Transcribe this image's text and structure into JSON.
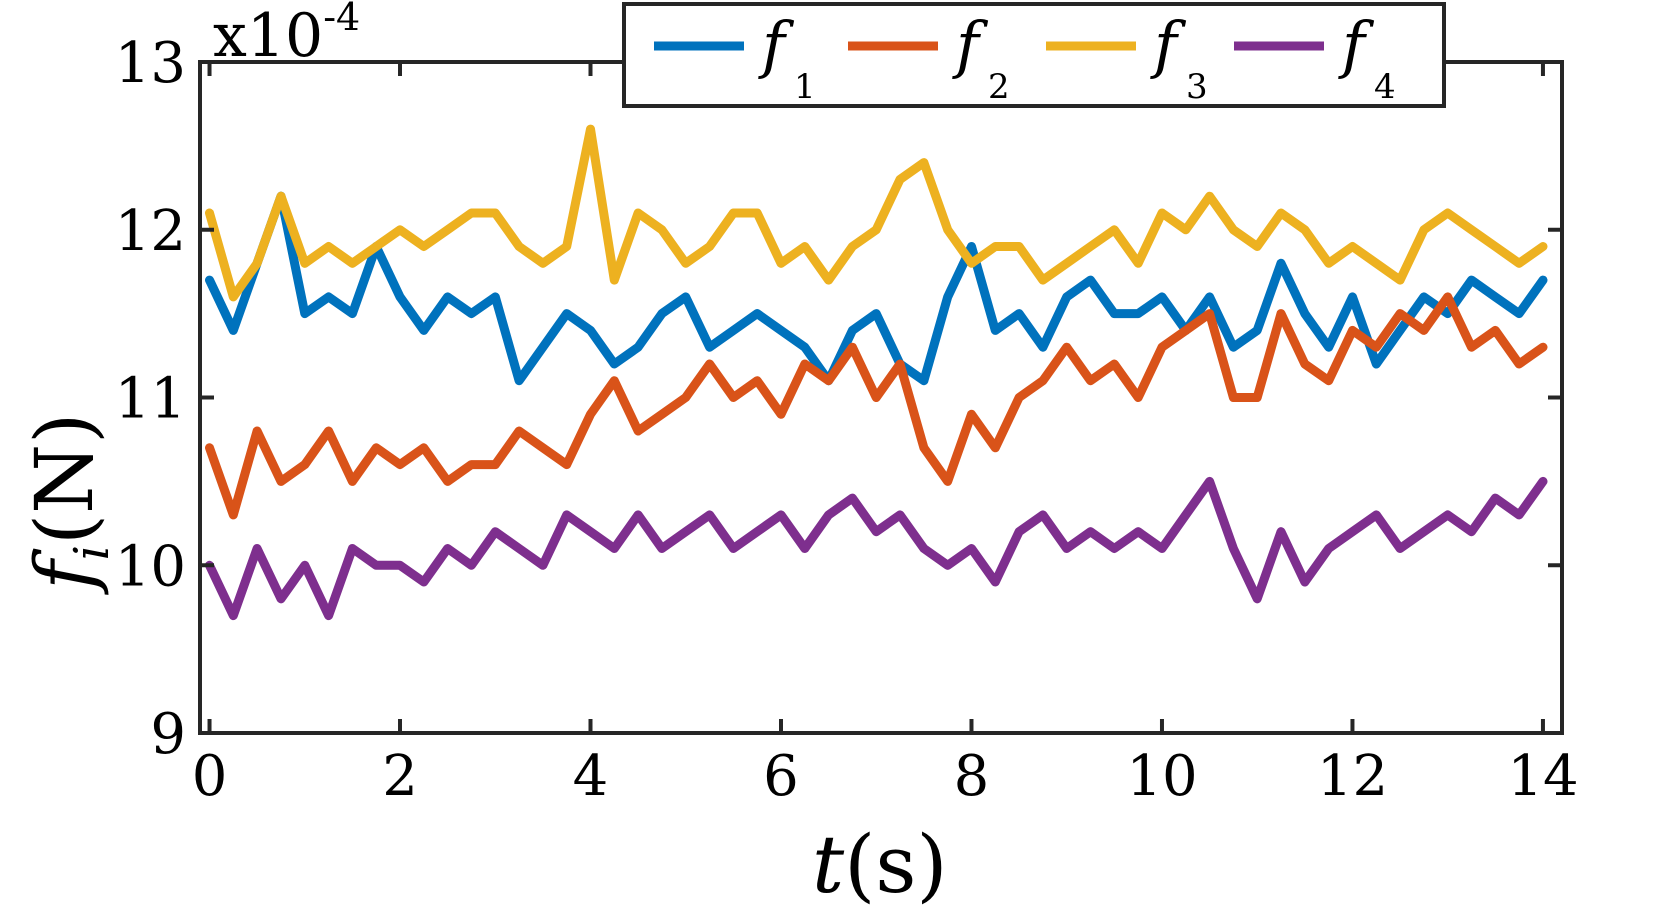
{
  "chart_data": {
    "type": "line",
    "scale_note": {
      "base": "x10",
      "exponent": "-4"
    },
    "xlabel": {
      "var": "t",
      "unit": "(s)"
    },
    "ylabel": {
      "var": "f",
      "sub": "i",
      "unit": "(N)"
    },
    "xlim": [
      -0.1,
      14.2
    ],
    "ylim": [
      9,
      13
    ],
    "xticks": [
      0,
      2,
      4,
      6,
      8,
      10,
      12,
      14
    ],
    "xtick_labels": [
      "0",
      "2",
      "4",
      "6",
      "8",
      "10",
      "12",
      "14"
    ],
    "yticks": [
      9,
      10,
      11,
      12,
      13
    ],
    "ytick_labels": [
      "9",
      "10",
      "11",
      "12",
      "13"
    ],
    "grid": false,
    "legend": {
      "placement": "top-right",
      "orientation": "horizontal"
    },
    "series": [
      {
        "name": "f",
        "sub": "1",
        "color": "#0072BD",
        "x": [
          0,
          0.25,
          0.5,
          0.75,
          1,
          1.25,
          1.5,
          1.75,
          2,
          2.25,
          2.5,
          2.75,
          3,
          3.25,
          3.5,
          3.75,
          4,
          4.25,
          4.5,
          4.75,
          5,
          5.25,
          5.5,
          5.75,
          6,
          6.25,
          6.5,
          6.75,
          7,
          7.25,
          7.5,
          7.75,
          8,
          8.25,
          8.5,
          8.75,
          9,
          9.25,
          9.5,
          9.75,
          10,
          10.25,
          10.5,
          10.75,
          11,
          11.25,
          11.5,
          11.75,
          12,
          12.25,
          12.5,
          12.75,
          13,
          13.25,
          13.5,
          13.75,
          14
        ],
        "y": [
          11.7,
          11.4,
          11.8,
          12.2,
          11.5,
          11.6,
          11.5,
          11.9,
          11.6,
          11.4,
          11.6,
          11.5,
          11.6,
          11.1,
          11.3,
          11.5,
          11.4,
          11.2,
          11.3,
          11.5,
          11.6,
          11.3,
          11.4,
          11.5,
          11.4,
          11.3,
          11.1,
          11.4,
          11.5,
          11.2,
          11.1,
          11.6,
          11.9,
          11.4,
          11.5,
          11.3,
          11.6,
          11.7,
          11.5,
          11.5,
          11.6,
          11.4,
          11.6,
          11.3,
          11.4,
          11.8,
          11.5,
          11.3,
          11.6,
          11.2,
          11.4,
          11.6,
          11.5,
          11.7,
          11.6,
          11.5,
          11.7
        ]
      },
      {
        "name": "f",
        "sub": "2",
        "color": "#D95319",
        "x": [
          0,
          0.25,
          0.5,
          0.75,
          1,
          1.25,
          1.5,
          1.75,
          2,
          2.25,
          2.5,
          2.75,
          3,
          3.25,
          3.5,
          3.75,
          4,
          4.25,
          4.5,
          4.75,
          5,
          5.25,
          5.5,
          5.75,
          6,
          6.25,
          6.5,
          6.75,
          7,
          7.25,
          7.5,
          7.75,
          8,
          8.25,
          8.5,
          8.75,
          9,
          9.25,
          9.5,
          9.75,
          10,
          10.25,
          10.5,
          10.75,
          11,
          11.25,
          11.5,
          11.75,
          12,
          12.25,
          12.5,
          12.75,
          13,
          13.25,
          13.5,
          13.75,
          14
        ],
        "y": [
          10.7,
          10.3,
          10.8,
          10.5,
          10.6,
          10.8,
          10.5,
          10.7,
          10.6,
          10.7,
          10.5,
          10.6,
          10.6,
          10.8,
          10.7,
          10.6,
          10.9,
          11.1,
          10.8,
          10.9,
          11.0,
          11.2,
          11.0,
          11.1,
          10.9,
          11.2,
          11.1,
          11.3,
          11.0,
          11.2,
          10.7,
          10.5,
          10.9,
          10.7,
          11.0,
          11.1,
          11.3,
          11.1,
          11.2,
          11.0,
          11.3,
          11.4,
          11.5,
          11.0,
          11.0,
          11.5,
          11.2,
          11.1,
          11.4,
          11.3,
          11.5,
          11.4,
          11.6,
          11.3,
          11.4,
          11.2,
          11.3
        ]
      },
      {
        "name": "f",
        "sub": "3",
        "color": "#EDB120",
        "x": [
          0,
          0.25,
          0.5,
          0.75,
          1,
          1.25,
          1.5,
          1.75,
          2,
          2.25,
          2.5,
          2.75,
          3,
          3.25,
          3.5,
          3.75,
          4,
          4.25,
          4.5,
          4.75,
          5,
          5.25,
          5.5,
          5.75,
          6,
          6.25,
          6.5,
          6.75,
          7,
          7.25,
          7.5,
          7.75,
          8,
          8.25,
          8.5,
          8.75,
          9,
          9.25,
          9.5,
          9.75,
          10,
          10.25,
          10.5,
          10.75,
          11,
          11.25,
          11.5,
          11.75,
          12,
          12.25,
          12.5,
          12.75,
          13,
          13.25,
          13.5,
          13.75,
          14
        ],
        "y": [
          12.1,
          11.6,
          11.8,
          12.2,
          11.8,
          11.9,
          11.8,
          11.9,
          12.0,
          11.9,
          12.0,
          12.1,
          12.1,
          11.9,
          11.8,
          11.9,
          12.6,
          11.7,
          12.1,
          12.0,
          11.8,
          11.9,
          12.1,
          12.1,
          11.8,
          11.9,
          11.7,
          11.9,
          12.0,
          12.3,
          12.4,
          12.0,
          11.8,
          11.9,
          11.9,
          11.7,
          11.8,
          11.9,
          12.0,
          11.8,
          12.1,
          12.0,
          12.2,
          12.0,
          11.9,
          12.1,
          12.0,
          11.8,
          11.9,
          11.8,
          11.7,
          12.0,
          12.1,
          12.0,
          11.9,
          11.8,
          11.9
        ]
      },
      {
        "name": "f",
        "sub": "4",
        "color": "#7E2F8E",
        "x": [
          0,
          0.25,
          0.5,
          0.75,
          1,
          1.25,
          1.5,
          1.75,
          2,
          2.25,
          2.5,
          2.75,
          3,
          3.25,
          3.5,
          3.75,
          4,
          4.25,
          4.5,
          4.75,
          5,
          5.25,
          5.5,
          5.75,
          6,
          6.25,
          6.5,
          6.75,
          7,
          7.25,
          7.5,
          7.75,
          8,
          8.25,
          8.5,
          8.75,
          9,
          9.25,
          9.5,
          9.75,
          10,
          10.25,
          10.5,
          10.75,
          11,
          11.25,
          11.5,
          11.75,
          12,
          12.25,
          12.5,
          12.75,
          13,
          13.25,
          13.5,
          13.75,
          14
        ],
        "y": [
          10.0,
          9.7,
          10.1,
          9.8,
          10.0,
          9.7,
          10.1,
          10.0,
          10.0,
          9.9,
          10.1,
          10.0,
          10.2,
          10.1,
          10.0,
          10.3,
          10.2,
          10.1,
          10.3,
          10.1,
          10.2,
          10.3,
          10.1,
          10.2,
          10.3,
          10.1,
          10.3,
          10.4,
          10.2,
          10.3,
          10.1,
          10.0,
          10.1,
          9.9,
          10.2,
          10.3,
          10.1,
          10.2,
          10.1,
          10.2,
          10.1,
          10.3,
          10.5,
          10.1,
          9.8,
          10.2,
          9.9,
          10.1,
          10.2,
          10.3,
          10.1,
          10.2,
          10.3,
          10.2,
          10.4,
          10.3,
          10.5
        ]
      }
    ]
  }
}
